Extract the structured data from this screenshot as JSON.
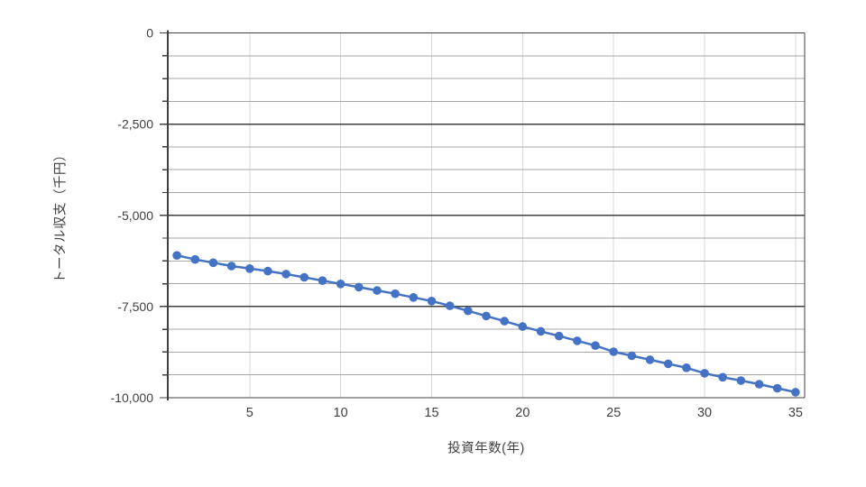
{
  "chart_data": {
    "type": "line",
    "title": "",
    "xlabel": "投資年数(年)",
    "ylabel": "トータル収支（千円）",
    "x": [
      1,
      2,
      3,
      4,
      5,
      6,
      7,
      8,
      9,
      10,
      11,
      12,
      13,
      14,
      15,
      16,
      17,
      18,
      19,
      20,
      21,
      22,
      23,
      24,
      25,
      26,
      27,
      28,
      29,
      30,
      31,
      32,
      33,
      34,
      35
    ],
    "series": [
      {
        "name": "トータル収支",
        "values": [
          -6100,
          -6210,
          -6300,
          -6390,
          -6460,
          -6530,
          -6610,
          -6700,
          -6790,
          -6880,
          -6970,
          -7060,
          -7150,
          -7250,
          -7350,
          -7480,
          -7620,
          -7760,
          -7900,
          -8050,
          -8180,
          -8310,
          -8440,
          -8570,
          -8740,
          -8850,
          -8960,
          -9070,
          -9180,
          -9330,
          -9440,
          -9530,
          -9630,
          -9740,
          -9850
        ]
      }
    ],
    "xlim": [
      0,
      35.5
    ],
    "ylim": [
      -10000,
      0
    ],
    "xticks": [
      5,
      10,
      15,
      20,
      25,
      30,
      35
    ],
    "xtick_labels": [
      "5",
      "10",
      "15",
      "20",
      "25",
      "30",
      "35"
    ],
    "yticks": [
      0,
      -2500,
      -5000,
      -7500,
      -10000
    ],
    "ytick_labels": [
      "0",
      "-2,500",
      "-5,000",
      "-7,500",
      "-10,000"
    ],
    "y_minor_unit": 625,
    "grid": {
      "horizontal_major": true,
      "horizontal_minor": true,
      "vertical_major": true,
      "legend": "none"
    },
    "colors": {
      "series": "#4472C4",
      "axis_line": "#404040",
      "major_gridline": "#404040",
      "minor_gridline": "#a6a6a6",
      "vertical_gridline": "#d9d9d9",
      "tick_label": "#404040",
      "background": "#ffffff"
    }
  }
}
